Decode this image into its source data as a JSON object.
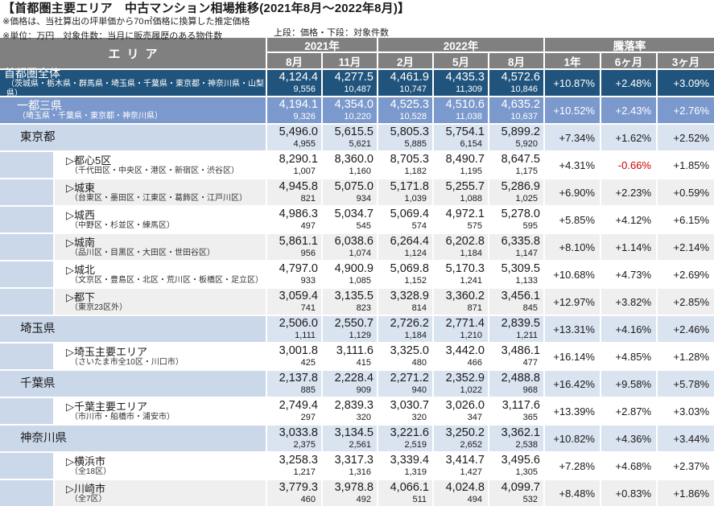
{
  "page": {
    "title": "【首都圏主要エリア　中古マンション相場推移(2021年8月～2022年8月)】",
    "note1": "※価格は、当社算出の坪単価から70㎡価格に換算した推定価格",
    "note2": "※単位：万円　対象件数：当月に販売履歴のある物件数",
    "note3": "上段：価格・下段：対象件数"
  },
  "colors": {
    "header_gray": "#808080",
    "navy": "#20547C",
    "mid_blue": "#7B99CC",
    "light_blue_label": "#CBD8E9",
    "light_blue_data": "#DAE3F0",
    "gray_row": "#EFEFEF",
    "neg_red": "#CC0000"
  },
  "table": {
    "area_header": "エリア",
    "year_groups": [
      {
        "label": "2021年",
        "span": 2
      },
      {
        "label": "2022年",
        "span": 3
      },
      {
        "label": "騰落率",
        "span": 3
      }
    ],
    "month_headers": [
      "8月",
      "11月",
      "2月",
      "5月",
      "8月",
      "1年",
      "6ヶ月",
      "3ヶ月"
    ],
    "rows": [
      {
        "level": "total",
        "shade": "",
        "name": "首都圏全体",
        "desc": "（茨城県・栃木県・群馬県・埼玉県・千葉県・東京都・神奈川県・山梨県）",
        "prices": [
          "4,124.4",
          "4,277.5",
          "4,461.9",
          "4,435.3",
          "4,572.6"
        ],
        "counts": [
          "9,556",
          "10,487",
          "10,747",
          "11,309",
          "10,846"
        ],
        "pcts": [
          "+10.87%",
          "+2.48%",
          "+3.09%"
        ]
      },
      {
        "level": "subtotal",
        "shade": "",
        "name": "一都三県",
        "desc": "（埼玉県・千葉県・東京都・神奈川県）",
        "prices": [
          "4,194.1",
          "4,354.0",
          "4,525.3",
          "4,510.6",
          "4,635.2"
        ],
        "counts": [
          "9,326",
          "10,220",
          "10,528",
          "11,038",
          "10,637"
        ],
        "pcts": [
          "+10.52%",
          "+2.43%",
          "+2.76%"
        ]
      },
      {
        "level": "pref",
        "shade": "",
        "name": "東京都",
        "desc": "",
        "prices": [
          "5,496.0",
          "5,615.5",
          "5,805.3",
          "5,754.1",
          "5,899.2"
        ],
        "counts": [
          "4,955",
          "5,621",
          "5,885",
          "6,154",
          "5,920"
        ],
        "pcts": [
          "+7.34%",
          "+1.62%",
          "+2.52%"
        ]
      },
      {
        "level": "sub",
        "shade": "white",
        "name": "▷都心5区",
        "desc": "（千代田区・中央区・港区・新宿区・渋谷区）",
        "prices": [
          "8,290.1",
          "8,360.0",
          "8,705.3",
          "8,490.7",
          "8,647.5"
        ],
        "counts": [
          "1,007",
          "1,160",
          "1,182",
          "1,195",
          "1,175"
        ],
        "pcts": [
          "+4.31%",
          "-0.66%",
          "+1.85%"
        ]
      },
      {
        "level": "sub",
        "shade": "gray",
        "name": "▷城東",
        "desc": "（台東区・墨田区・江東区・葛飾区・江戸川区）",
        "prices": [
          "4,945.8",
          "5,075.0",
          "5,171.8",
          "5,255.7",
          "5,286.9"
        ],
        "counts": [
          "821",
          "934",
          "1,039",
          "1,088",
          "1,025"
        ],
        "pcts": [
          "+6.90%",
          "+2.23%",
          "+0.59%"
        ]
      },
      {
        "level": "sub",
        "shade": "white",
        "name": "▷城西",
        "desc": "（中野区・杉並区・練馬区）",
        "prices": [
          "4,986.3",
          "5,034.7",
          "5,069.4",
          "4,972.1",
          "5,278.0"
        ],
        "counts": [
          "497",
          "545",
          "574",
          "575",
          "595"
        ],
        "pcts": [
          "+5.85%",
          "+4.12%",
          "+6.15%"
        ]
      },
      {
        "level": "sub",
        "shade": "gray",
        "name": "▷城南",
        "desc": "（品川区・目黒区・大田区・世田谷区）",
        "prices": [
          "5,861.1",
          "6,038.6",
          "6,264.4",
          "6,202.8",
          "6,335.8"
        ],
        "counts": [
          "956",
          "1,074",
          "1,124",
          "1,184",
          "1,147"
        ],
        "pcts": [
          "+8.10%",
          "+1.14%",
          "+2.14%"
        ]
      },
      {
        "level": "sub",
        "shade": "white",
        "name": "▷城北",
        "desc": "（文京区・豊島区・北区・荒川区・板橋区・足立区）",
        "prices": [
          "4,797.0",
          "4,900.9",
          "5,069.8",
          "5,170.3",
          "5,309.5"
        ],
        "counts": [
          "933",
          "1,085",
          "1,152",
          "1,241",
          "1,133"
        ],
        "pcts": [
          "+10.68%",
          "+4.73%",
          "+2.69%"
        ]
      },
      {
        "level": "sub",
        "shade": "gray",
        "name": "▷都下",
        "desc": "（東京23区外）",
        "prices": [
          "3,059.4",
          "3,135.5",
          "3,328.9",
          "3,360.2",
          "3,456.1"
        ],
        "counts": [
          "741",
          "823",
          "814",
          "871",
          "845"
        ],
        "pcts": [
          "+12.97%",
          "+3.82%",
          "+2.85%"
        ]
      },
      {
        "level": "pref",
        "shade": "",
        "name": "埼玉県",
        "desc": "",
        "prices": [
          "2,506.0",
          "2,550.7",
          "2,726.2",
          "2,771.4",
          "2,839.5"
        ],
        "counts": [
          "1,111",
          "1,129",
          "1,184",
          "1,210",
          "1,211"
        ],
        "pcts": [
          "+13.31%",
          "+4.16%",
          "+2.46%"
        ]
      },
      {
        "level": "sub",
        "shade": "white",
        "name": "▷埼玉主要エリア",
        "desc": "（さいたま市全10区・川口市）",
        "prices": [
          "3,001.8",
          "3,111.6",
          "3,325.0",
          "3,442.0",
          "3,486.1"
        ],
        "counts": [
          "425",
          "415",
          "480",
          "466",
          "477"
        ],
        "pcts": [
          "+16.14%",
          "+4.85%",
          "+1.28%"
        ]
      },
      {
        "level": "pref",
        "shade": "",
        "name": "千葉県",
        "desc": "",
        "prices": [
          "2,137.8",
          "2,228.4",
          "2,271.2",
          "2,352.9",
          "2,488.8"
        ],
        "counts": [
          "885",
          "909",
          "940",
          "1,022",
          "968"
        ],
        "pcts": [
          "+16.42%",
          "+9.58%",
          "+5.78%"
        ]
      },
      {
        "level": "sub",
        "shade": "white",
        "name": "▷千葉主要エリア",
        "desc": "（市川市・船橋市・浦安市）",
        "prices": [
          "2,749.4",
          "2,839.3",
          "3,030.7",
          "3,026.0",
          "3,117.6"
        ],
        "counts": [
          "297",
          "320",
          "320",
          "347",
          "365"
        ],
        "pcts": [
          "+13.39%",
          "+2.87%",
          "+3.03%"
        ]
      },
      {
        "level": "pref",
        "shade": "",
        "name": "神奈川県",
        "desc": "",
        "prices": [
          "3,033.8",
          "3,134.5",
          "3,221.6",
          "3,250.2",
          "3,362.1"
        ],
        "counts": [
          "2,375",
          "2,561",
          "2,519",
          "2,652",
          "2,538"
        ],
        "pcts": [
          "+10.82%",
          "+4.36%",
          "+3.44%"
        ]
      },
      {
        "level": "sub",
        "shade": "white",
        "name": "▷横浜市",
        "desc": "（全18区）",
        "prices": [
          "3,258.3",
          "3,317.3",
          "3,339.4",
          "3,414.7",
          "3,495.6"
        ],
        "counts": [
          "1,217",
          "1,316",
          "1,319",
          "1,427",
          "1,305"
        ],
        "pcts": [
          "+7.28%",
          "+4.68%",
          "+2.37%"
        ]
      },
      {
        "level": "sub",
        "shade": "gray",
        "name": "▷川崎市",
        "desc": "（全7区）",
        "prices": [
          "3,779.3",
          "3,978.8",
          "4,066.1",
          "4,024.8",
          "4,099.7"
        ],
        "counts": [
          "460",
          "492",
          "511",
          "494",
          "532"
        ],
        "pcts": [
          "+8.48%",
          "+0.83%",
          "+1.86%"
        ]
      }
    ]
  }
}
